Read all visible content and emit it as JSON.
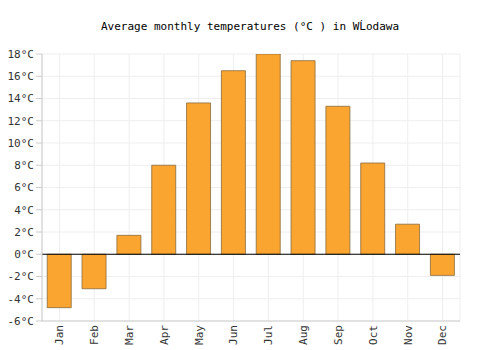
{
  "chart_data": {
    "type": "bar",
    "title": "Average monthly temperatures (°C ) in WĹodawa",
    "categories": [
      "Jan",
      "Feb",
      "Mar",
      "Apr",
      "May",
      "Jun",
      "Jul",
      "Aug",
      "Sep",
      "Oct",
      "Nov",
      "Dec"
    ],
    "values": [
      -4.8,
      -3.1,
      1.7,
      8.0,
      13.6,
      16.5,
      18.0,
      17.4,
      13.3,
      8.2,
      2.7,
      -1.9
    ],
    "color": "#fba531",
    "ylim": [
      -6,
      18
    ],
    "yticks": [
      {
        "value": -6,
        "label": "-6°C"
      },
      {
        "value": -4,
        "label": "-4°C"
      },
      {
        "value": -2,
        "label": "-2°C"
      },
      {
        "value": 0,
        "label": "0°C"
      },
      {
        "value": 2,
        "label": "2°C"
      },
      {
        "value": 4,
        "label": "4°C"
      },
      {
        "value": 6,
        "label": "6°C"
      },
      {
        "value": 8,
        "label": "8°C"
      },
      {
        "value": 10,
        "label": "10°C"
      },
      {
        "value": 12,
        "label": "12°C"
      },
      {
        "value": 14,
        "label": "14°C"
      },
      {
        "value": 16,
        "label": "16°C"
      },
      {
        "value": 18,
        "label": "18°C"
      }
    ],
    "grid": true
  }
}
